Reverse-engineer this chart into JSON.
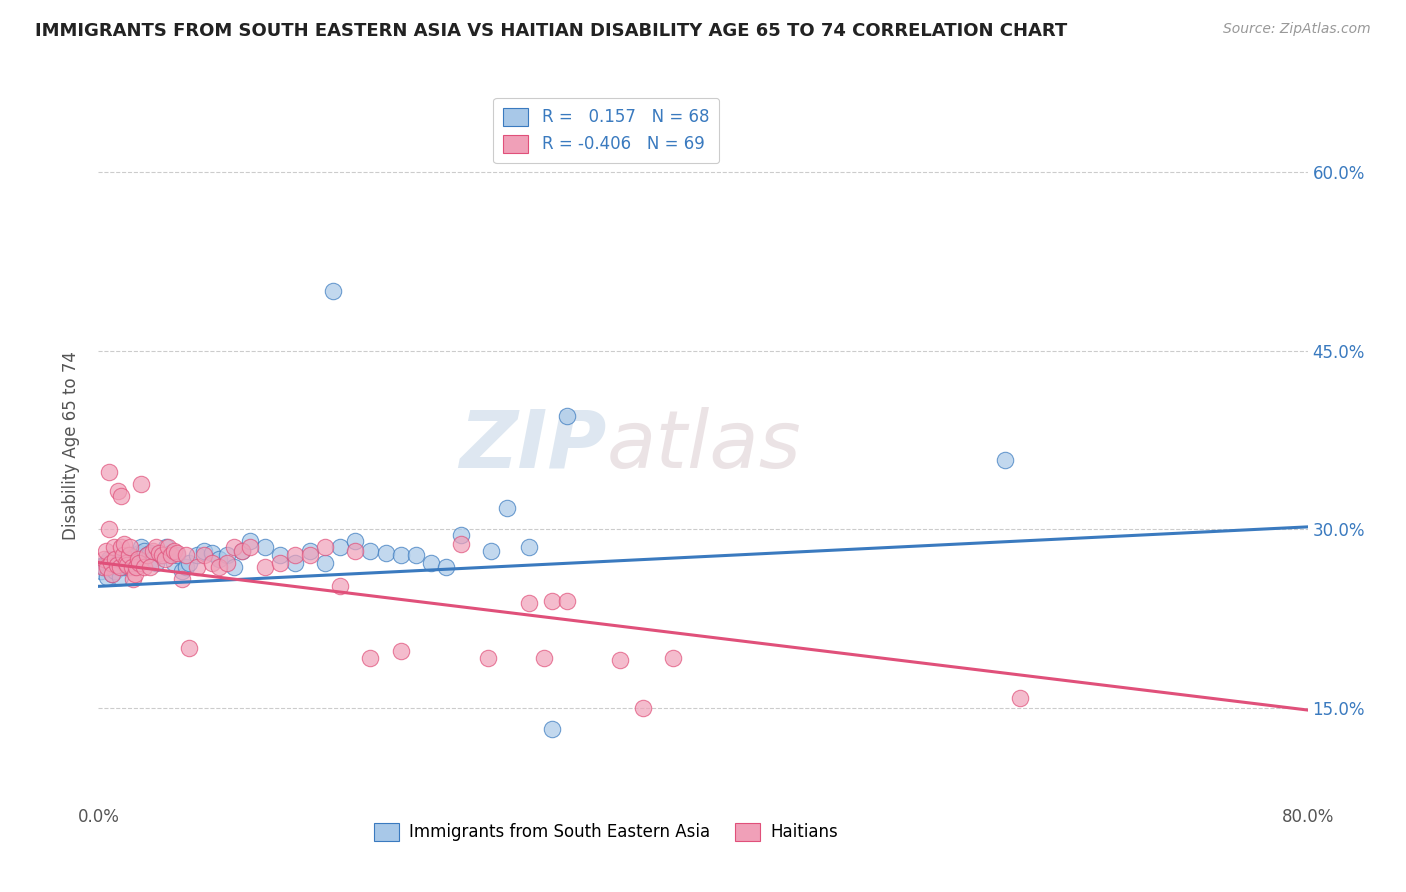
{
  "title": "IMMIGRANTS FROM SOUTH EASTERN ASIA VS HAITIAN DISABILITY AGE 65 TO 74 CORRELATION CHART",
  "source": "Source: ZipAtlas.com",
  "ylabel": "Disability Age 65 to 74",
  "yticks": [
    "15.0%",
    "30.0%",
    "45.0%",
    "60.0%"
  ],
  "ytick_vals": [
    0.15,
    0.3,
    0.45,
    0.6
  ],
  "xlim": [
    0.0,
    0.8
  ],
  "ylim": [
    0.07,
    0.67
  ],
  "watermark": "ZIPatlas",
  "blue_color": "#a8c8e8",
  "pink_color": "#f0a0b8",
  "blue_line_color": "#3a7abf",
  "pink_line_color": "#e0507a",
  "legend_text_color": "#3a7abf",
  "blue_scatter": [
    [
      0.002,
      0.265
    ],
    [
      0.003,
      0.27
    ],
    [
      0.004,
      0.268
    ],
    [
      0.005,
      0.272
    ],
    [
      0.006,
      0.26
    ],
    [
      0.007,
      0.275
    ],
    [
      0.008,
      0.268
    ],
    [
      0.009,
      0.262
    ],
    [
      0.01,
      0.27
    ],
    [
      0.011,
      0.265
    ],
    [
      0.012,
      0.272
    ],
    [
      0.013,
      0.268
    ],
    [
      0.014,
      0.26
    ],
    [
      0.015,
      0.275
    ],
    [
      0.016,
      0.27
    ],
    [
      0.017,
      0.268
    ],
    [
      0.018,
      0.275
    ],
    [
      0.019,
      0.272
    ],
    [
      0.02,
      0.268
    ],
    [
      0.021,
      0.275
    ],
    [
      0.022,
      0.27
    ],
    [
      0.023,
      0.272
    ],
    [
      0.025,
      0.278
    ],
    [
      0.027,
      0.28
    ],
    [
      0.028,
      0.285
    ],
    [
      0.03,
      0.282
    ],
    [
      0.032,
      0.278
    ],
    [
      0.034,
      0.28
    ],
    [
      0.036,
      0.275
    ],
    [
      0.038,
      0.272
    ],
    [
      0.04,
      0.28
    ],
    [
      0.042,
      0.278
    ],
    [
      0.045,
      0.285
    ],
    [
      0.048,
      0.28
    ],
    [
      0.05,
      0.272
    ],
    [
      0.052,
      0.278
    ],
    [
      0.055,
      0.265
    ],
    [
      0.058,
      0.268
    ],
    [
      0.06,
      0.272
    ],
    [
      0.065,
      0.278
    ],
    [
      0.07,
      0.282
    ],
    [
      0.075,
      0.28
    ],
    [
      0.08,
      0.275
    ],
    [
      0.085,
      0.278
    ],
    [
      0.09,
      0.268
    ],
    [
      0.095,
      0.282
    ],
    [
      0.1,
      0.29
    ],
    [
      0.11,
      0.285
    ],
    [
      0.12,
      0.278
    ],
    [
      0.13,
      0.272
    ],
    [
      0.14,
      0.282
    ],
    [
      0.15,
      0.272
    ],
    [
      0.16,
      0.285
    ],
    [
      0.17,
      0.29
    ],
    [
      0.18,
      0.282
    ],
    [
      0.19,
      0.28
    ],
    [
      0.2,
      0.278
    ],
    [
      0.21,
      0.278
    ],
    [
      0.22,
      0.272
    ],
    [
      0.23,
      0.268
    ],
    [
      0.24,
      0.295
    ],
    [
      0.26,
      0.282
    ],
    [
      0.27,
      0.318
    ],
    [
      0.285,
      0.285
    ],
    [
      0.31,
      0.395
    ],
    [
      0.155,
      0.5
    ],
    [
      0.6,
      0.358
    ],
    [
      0.3,
      0.132
    ]
  ],
  "pink_scatter": [
    [
      0.003,
      0.268
    ],
    [
      0.004,
      0.275
    ],
    [
      0.005,
      0.282
    ],
    [
      0.006,
      0.268
    ],
    [
      0.007,
      0.3
    ],
    [
      0.007,
      0.348
    ],
    [
      0.008,
      0.272
    ],
    [
      0.009,
      0.262
    ],
    [
      0.01,
      0.285
    ],
    [
      0.011,
      0.275
    ],
    [
      0.012,
      0.27
    ],
    [
      0.013,
      0.332
    ],
    [
      0.014,
      0.268
    ],
    [
      0.015,
      0.285
    ],
    [
      0.015,
      0.328
    ],
    [
      0.016,
      0.278
    ],
    [
      0.017,
      0.288
    ],
    [
      0.018,
      0.272
    ],
    [
      0.019,
      0.27
    ],
    [
      0.02,
      0.278
    ],
    [
      0.021,
      0.285
    ],
    [
      0.022,
      0.268
    ],
    [
      0.023,
      0.258
    ],
    [
      0.024,
      0.262
    ],
    [
      0.025,
      0.268
    ],
    [
      0.026,
      0.275
    ],
    [
      0.027,
      0.272
    ],
    [
      0.028,
      0.338
    ],
    [
      0.03,
      0.268
    ],
    [
      0.032,
      0.278
    ],
    [
      0.034,
      0.268
    ],
    [
      0.036,
      0.282
    ],
    [
      0.038,
      0.285
    ],
    [
      0.04,
      0.28
    ],
    [
      0.042,
      0.278
    ],
    [
      0.044,
      0.275
    ],
    [
      0.046,
      0.285
    ],
    [
      0.048,
      0.278
    ],
    [
      0.05,
      0.282
    ],
    [
      0.052,
      0.28
    ],
    [
      0.055,
      0.258
    ],
    [
      0.058,
      0.278
    ],
    [
      0.06,
      0.2
    ],
    [
      0.065,
      0.268
    ],
    [
      0.07,
      0.278
    ],
    [
      0.075,
      0.272
    ],
    [
      0.08,
      0.268
    ],
    [
      0.085,
      0.272
    ],
    [
      0.09,
      0.285
    ],
    [
      0.095,
      0.282
    ],
    [
      0.1,
      0.285
    ],
    [
      0.11,
      0.268
    ],
    [
      0.12,
      0.272
    ],
    [
      0.13,
      0.278
    ],
    [
      0.14,
      0.278
    ],
    [
      0.15,
      0.285
    ],
    [
      0.16,
      0.252
    ],
    [
      0.17,
      0.282
    ],
    [
      0.18,
      0.192
    ],
    [
      0.2,
      0.198
    ],
    [
      0.24,
      0.288
    ],
    [
      0.258,
      0.192
    ],
    [
      0.285,
      0.238
    ],
    [
      0.295,
      0.192
    ],
    [
      0.3,
      0.24
    ],
    [
      0.31,
      0.24
    ],
    [
      0.345,
      0.19
    ],
    [
      0.36,
      0.15
    ],
    [
      0.38,
      0.192
    ],
    [
      0.61,
      0.158
    ]
  ],
  "blue_line_x": [
    0.0,
    0.8
  ],
  "blue_line_y": [
    0.252,
    0.302
  ],
  "pink_line_x": [
    0.0,
    0.8
  ],
  "pink_line_y": [
    0.272,
    0.148
  ]
}
